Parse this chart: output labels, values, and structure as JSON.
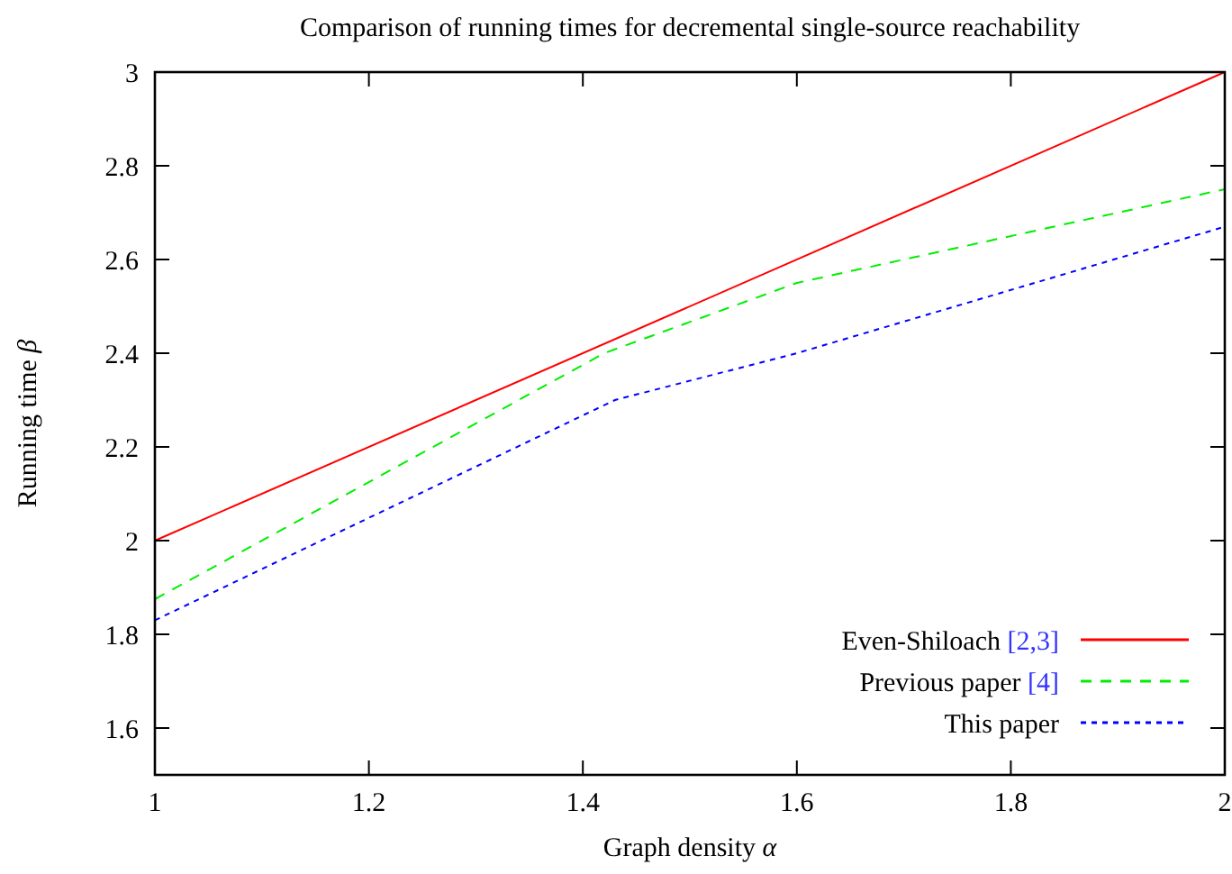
{
  "chart_data": {
    "type": "line",
    "title": "Comparison of running times for decremental single-source reachability",
    "xlabel": "Graph density α",
    "ylabel": "Running time β",
    "xlim": [
      1,
      2
    ],
    "xticks": [
      1,
      1.2,
      1.4,
      1.6,
      1.8,
      2
    ],
    "ylim": [
      1.5,
      3
    ],
    "yticks": [
      1.6,
      1.8,
      2,
      2.2,
      2.4,
      2.6,
      2.8,
      3
    ],
    "legend": "bottom right",
    "grid": false,
    "marker": "none",
    "series": [
      {
        "name": "Even-Shiloach [2,3]",
        "color": "#ff0000",
        "line_style": "solid",
        "x": [
          1,
          2
        ],
        "values": [
          2,
          3
        ]
      },
      {
        "name": "Previous paper [4]",
        "color": "#00ee00",
        "line_style": "dashed",
        "x": [
          1,
          1.42,
          1.6,
          2
        ],
        "values": [
          1.875,
          2.4,
          2.55,
          2.75
        ]
      },
      {
        "name": "This paper",
        "color": "#0000ff",
        "line_style": "dotted",
        "x": [
          1,
          1.43,
          1.6,
          2
        ],
        "values": [
          1.83,
          2.3,
          2.4,
          2.67
        ]
      }
    ]
  }
}
